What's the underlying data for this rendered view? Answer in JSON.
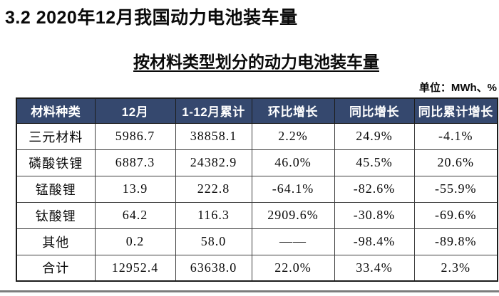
{
  "page": {
    "title": "3.2 2020年12月我国动力电池装车量",
    "table_title": "按材料类型划分的动力电池装车量",
    "unit_label": "单位：MWh、%"
  },
  "colors": {
    "header_bg": "#35486E",
    "header_text": "#FFFFFF",
    "table_outer_border": "#1C1C1C",
    "table_inner_border": "#3D3D3D",
    "bottom_rule": "#7D7D7D",
    "title_text": "#0A0A0A"
  },
  "chart_data": {
    "type": "table",
    "title": "按材料类型划分的动力电池装车量",
    "unit": "MWh、%",
    "columns": [
      "材料种类",
      "12月",
      "1-12月累计",
      "环比增长",
      "同比增长",
      "同比累计增长"
    ],
    "rows": [
      [
        "三元材料",
        "5986.7",
        "38858.1",
        "2.2%",
        "24.9%",
        "-4.1%"
      ],
      [
        "磷酸铁锂",
        "6887.3",
        "24382.9",
        "46.0%",
        "45.5%",
        "20.6%"
      ],
      [
        "锰酸锂",
        "13.9",
        "222.8",
        "-64.1%",
        "-82.6%",
        "-55.9%"
      ],
      [
        "钛酸锂",
        "64.2",
        "116.3",
        "2909.6%",
        "-30.8%",
        "-69.6%"
      ],
      [
        "其他",
        "0.2",
        "58.0",
        "——",
        "-98.4%",
        "-89.8%"
      ],
      [
        "合计",
        "12952.4",
        "63638.0",
        "22.0%",
        "33.4%",
        "2.3%"
      ]
    ]
  }
}
